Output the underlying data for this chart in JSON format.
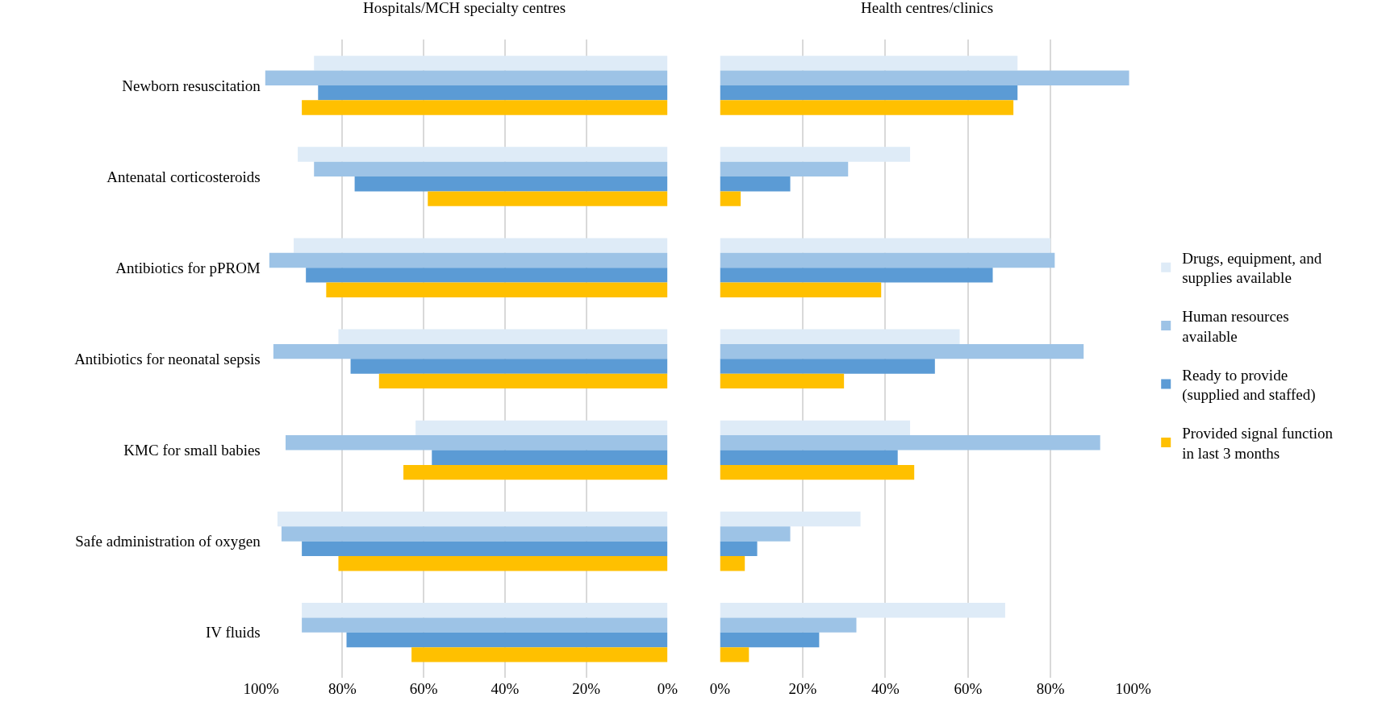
{
  "chart_data": [
    {
      "type": "bar",
      "orientation": "horizontal",
      "title": "Hospitals/MCH specialty centres",
      "categories": [
        "Newborn resuscitation",
        "Antenatal corticosteroids",
        "Antibiotics for pPROM",
        "Antibiotics for neonatal sepsis",
        "KMC for small babies",
        "Safe administration of oxygen",
        "IV fluids"
      ],
      "series": [
        {
          "color": "#deebf7",
          "values": [
            87,
            91,
            92,
            81,
            62,
            96,
            90
          ]
        },
        {
          "color": "#9dc3e6",
          "values": [
            99,
            87,
            98,
            97,
            94,
            95,
            90
          ]
        },
        {
          "color": "#5b9bd5",
          "values": [
            86,
            77,
            89,
            78,
            58,
            90,
            79
          ]
        },
        {
          "color": "#ffc000",
          "values": [
            90,
            59,
            84,
            71,
            65,
            81,
            63
          ]
        }
      ],
      "xlim": [
        100,
        0
      ],
      "xticks": [
        {
          "value": 100,
          "label": "100%"
        },
        {
          "value": 80,
          "label": "80%"
        },
        {
          "value": 60,
          "label": "60%"
        },
        {
          "value": 40,
          "label": "40%"
        },
        {
          "value": 20,
          "label": "20%"
        },
        {
          "value": 0,
          "label": "0%"
        }
      ],
      "grid": "x",
      "legend": false
    },
    {
      "type": "bar",
      "orientation": "horizontal",
      "title": "Health centres/clinics",
      "categories": [
        "Newborn resuscitation",
        "Antenatal corticosteroids",
        "Antibiotics for pPROM",
        "Antibiotics for neonatal sepsis",
        "KMC for small babies",
        "Safe administration of oxygen",
        "IV fluids"
      ],
      "series": [
        {
          "name": "Drugs, equipment, and\nsupplies available",
          "color": "#deebf7",
          "values": [
            72,
            46,
            80,
            58,
            46,
            34,
            69
          ]
        },
        {
          "name": "Human resources\navailable",
          "color": "#9dc3e6",
          "values": [
            99,
            31,
            81,
            88,
            92,
            17,
            33
          ]
        },
        {
          "name": "Ready to provide\n(supplied and staffed)",
          "color": "#5b9bd5",
          "values": [
            72,
            17,
            66,
            52,
            43,
            9,
            24
          ]
        },
        {
          "name": "Provided signal function\nin last 3 months",
          "color": "#ffc000",
          "values": [
            71,
            5,
            39,
            30,
            47,
            6,
            7
          ]
        }
      ],
      "xlim": [
        0,
        100
      ],
      "xticks": [
        {
          "value": 0,
          "label": "0%"
        },
        {
          "value": 20,
          "label": "20%"
        },
        {
          "value": 40,
          "label": "40%"
        },
        {
          "value": 60,
          "label": "60%"
        },
        {
          "value": 80,
          "label": "80%"
        },
        {
          "value": 100,
          "label": "100%"
        }
      ],
      "grid": "x",
      "legend": "right",
      "tick_labels": "x"
    }
  ]
}
